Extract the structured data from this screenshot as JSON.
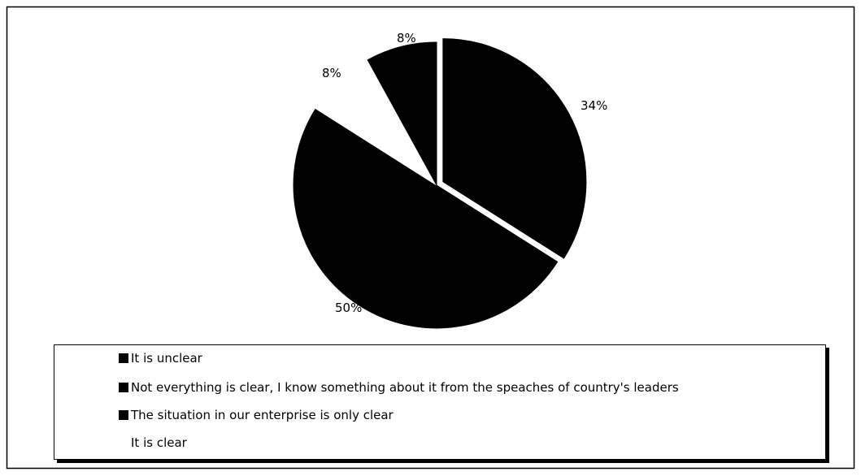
{
  "chart_data": {
    "type": "pie",
    "title": "",
    "slices": [
      {
        "label": "It is unclear",
        "value": 8,
        "data_label": "8%",
        "color": "#000000"
      },
      {
        "label": "Not everything is clear, I know something about it from the speaches of country's leaders",
        "value": 34,
        "data_label": "34%",
        "color": "#000000"
      },
      {
        "label": "The situation in our enterprise is only clear",
        "value": 50,
        "data_label": "50%",
        "color": "#000000"
      },
      {
        "label": "It is clear",
        "value": 8,
        "data_label": "8%",
        "color": "#ffffff"
      }
    ],
    "legend_position": "bottom",
    "exploded": true
  }
}
